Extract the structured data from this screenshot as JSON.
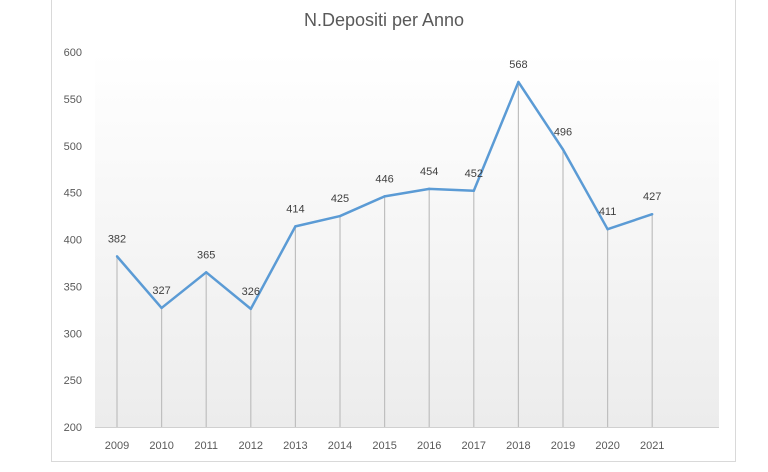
{
  "chart_data": {
    "type": "line",
    "title": "N.Depositi per Anno",
    "categories": [
      "2009",
      "2010",
      "2011",
      "2012",
      "2013",
      "2014",
      "2015",
      "2016",
      "2017",
      "2018",
      "2019",
      "2020",
      "2021"
    ],
    "values": [
      382,
      327,
      365,
      326,
      414,
      425,
      446,
      454,
      452,
      568,
      496,
      411,
      427
    ],
    "ylim": [
      200,
      600
    ],
    "yticks": [
      200,
      250,
      300,
      350,
      400,
      450,
      500,
      550,
      600
    ],
    "data_labels": true,
    "drop_lines": true,
    "grid": false,
    "legend": "none",
    "line_color": "#5b9bd5"
  }
}
